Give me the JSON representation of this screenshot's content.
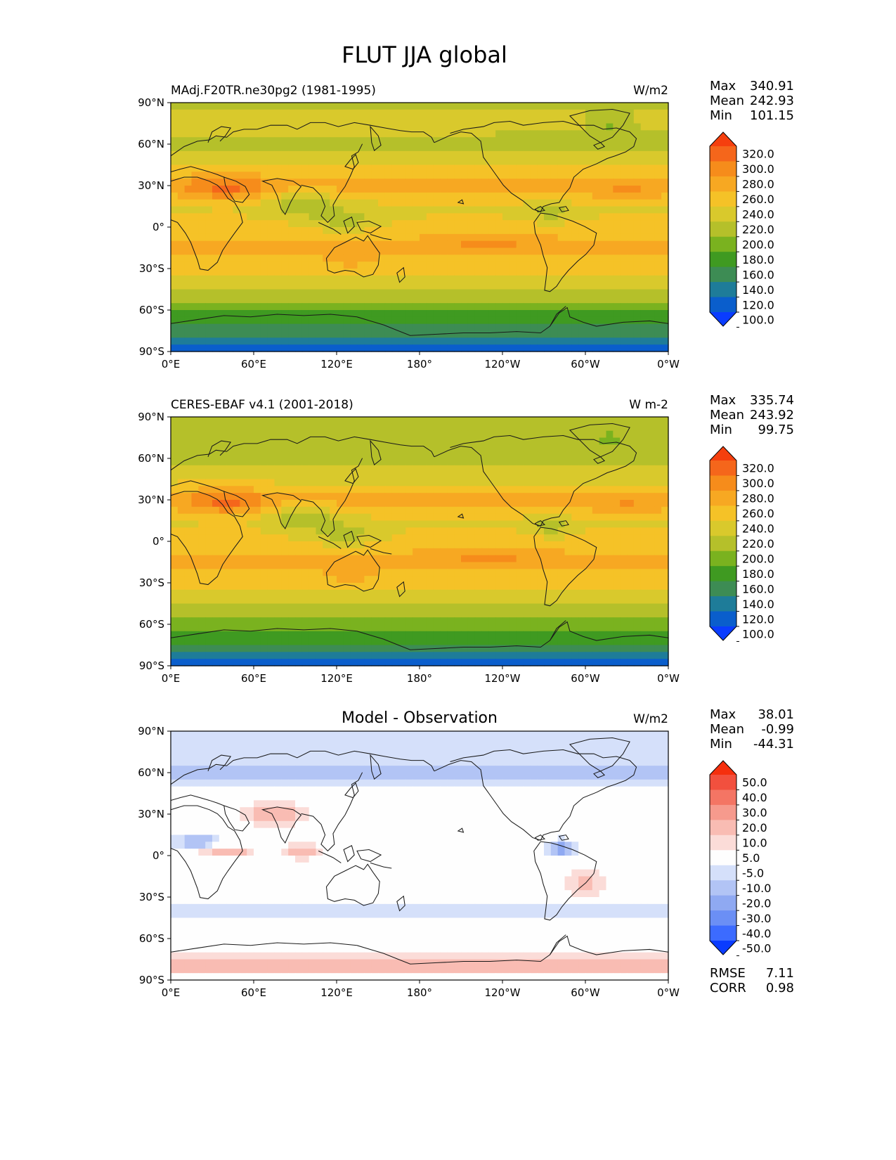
{
  "title": "FLUT JJA global",
  "colors": {
    "main_levels": [
      "#0a3cff",
      "#0a5ecc",
      "#1e7c99",
      "#3d8c54",
      "#3f9a21",
      "#7ab21f",
      "#b5c02a",
      "#d9c92c",
      "#f5c227",
      "#f7a822",
      "#f68c1b",
      "#f5661b",
      "#f53f0e"
    ],
    "diff_levels": [
      "#0a3cff",
      "#3c6bff",
      "#6b8ff5",
      "#8fa9f2",
      "#b2c4f5",
      "#d5e0fa",
      "#fefefe",
      "#fbdcd8",
      "#f9bcb3",
      "#f69a8d",
      "#f47564",
      "#f2503e",
      "#f52f0e"
    ],
    "coastline": "#1a1a1a"
  },
  "panels": [
    {
      "left_title": "MAdj.F20TR.ne30pg2 (1981-1995)",
      "center_title": "",
      "units": "W/m2",
      "stats": [
        {
          "label": "Max",
          "value": "340.91"
        },
        {
          "label": "Mean",
          "value": "242.93"
        },
        {
          "label": "Min",
          "value": "101.15"
        }
      ],
      "colorbar_labels": [
        "320.0",
        "300.0",
        "280.0",
        "260.0",
        "240.0",
        "220.0",
        "200.0",
        "180.0",
        "160.0",
        "140.0",
        "120.0",
        "100.0"
      ],
      "colorbar": "main",
      "extra_stats": []
    },
    {
      "left_title": "CERES-EBAF v4.1 (2001-2018)",
      "center_title": "",
      "units": "W m-2",
      "stats": [
        {
          "label": "Max",
          "value": "335.74"
        },
        {
          "label": "Mean",
          "value": "243.92"
        },
        {
          "label": "Min",
          "value": "99.75"
        }
      ],
      "colorbar_labels": [
        "320.0",
        "300.0",
        "280.0",
        "260.0",
        "240.0",
        "220.0",
        "200.0",
        "180.0",
        "160.0",
        "140.0",
        "120.0",
        "100.0"
      ],
      "colorbar": "main",
      "extra_stats": []
    },
    {
      "left_title": "",
      "center_title": "Model - Observation",
      "units": "W/m2",
      "stats": [
        {
          "label": "Max",
          "value": "38.01"
        },
        {
          "label": "Mean",
          "value": "-0.99"
        },
        {
          "label": "Min",
          "value": "-44.31"
        }
      ],
      "colorbar_labels": [
        "50.0",
        "40.0",
        "30.0",
        "20.0",
        "10.0",
        "5.0",
        "-5.0",
        "-10.0",
        "-20.0",
        "-30.0",
        "-40.0",
        "-50.0"
      ],
      "colorbar": "diff",
      "extra_stats": [
        {
          "label": "RMSE",
          "value": "7.11"
        },
        {
          "label": "CORR",
          "value": "0.98"
        }
      ]
    }
  ],
  "chart_data": {
    "type": "heatmap",
    "title": "FLUT JJA global",
    "projection": "PlateCarree (0°E central, lon 0–360)",
    "x_ticks": [
      "0°E",
      "60°E",
      "120°E",
      "180°",
      "120°W",
      "60°W",
      "0°W"
    ],
    "x_tick_values": [
      0,
      60,
      120,
      180,
      240,
      300,
      360
    ],
    "y_ticks": [
      "90°N",
      "60°N",
      "30°N",
      "0°",
      "30°S",
      "60°S",
      "90°S"
    ],
    "y_tick_values": [
      90,
      60,
      30,
      0,
      -30,
      -60,
      -90
    ],
    "xlim": [
      0,
      360
    ],
    "ylim": [
      -90,
      90
    ],
    "main_contour_levels": [
      100,
      120,
      140,
      160,
      180,
      200,
      220,
      240,
      260,
      280,
      300,
      320
    ],
    "diff_contour_levels": [
      -50,
      -40,
      -30,
      -20,
      -10,
      -5,
      5,
      10,
      20,
      30,
      40,
      50
    ],
    "fields": [
      "model",
      "observation",
      "difference"
    ],
    "zonal_profile_model": {
      "lat": [
        -90,
        -75,
        -60,
        -45,
        -30,
        -15,
        0,
        15,
        30,
        45,
        60,
        75,
        90
      ],
      "value": [
        105,
        150,
        185,
        215,
        245,
        265,
        245,
        235,
        270,
        235,
        215,
        225,
        218
      ]
    },
    "zonal_profile_obs": {
      "lat": [
        -90,
        -75,
        -60,
        -45,
        -30,
        -15,
        0,
        15,
        30,
        45,
        60,
        75,
        90
      ],
      "value": [
        108,
        165,
        188,
        218,
        246,
        266,
        246,
        236,
        268,
        233,
        214,
        220,
        215
      ]
    }
  }
}
